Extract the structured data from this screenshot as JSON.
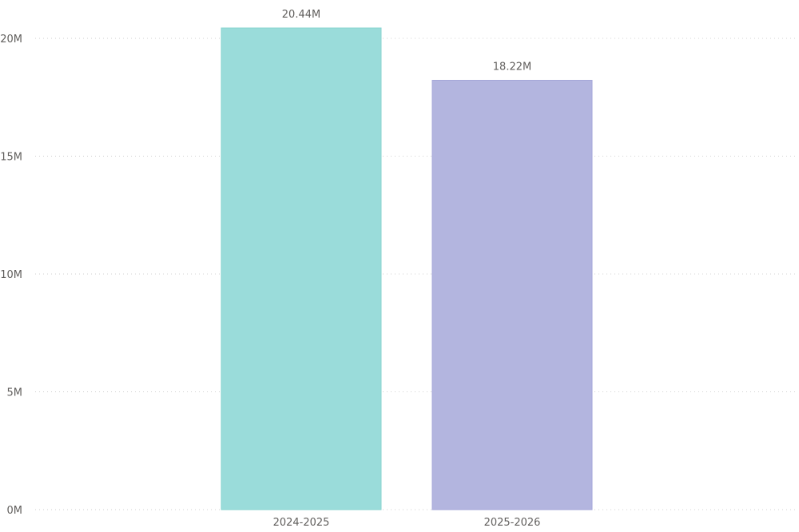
{
  "chart_data": {
    "type": "bar",
    "categories": [
      "2024-2025",
      "2025-2026"
    ],
    "values": [
      20.44,
      18.22
    ],
    "data_labels": [
      "20.44M",
      "18.22M"
    ],
    "ylim": [
      0,
      20
    ],
    "yticks": [
      0,
      5,
      10,
      15,
      20
    ],
    "ytick_labels": [
      "0M",
      "5M",
      "10M",
      "15M",
      "20M"
    ],
    "grid": true,
    "colors": [
      "#9adcda",
      "#b3b5df"
    ],
    "border_colors": [
      "#88d3d0",
      "#a5a7d8"
    ]
  }
}
